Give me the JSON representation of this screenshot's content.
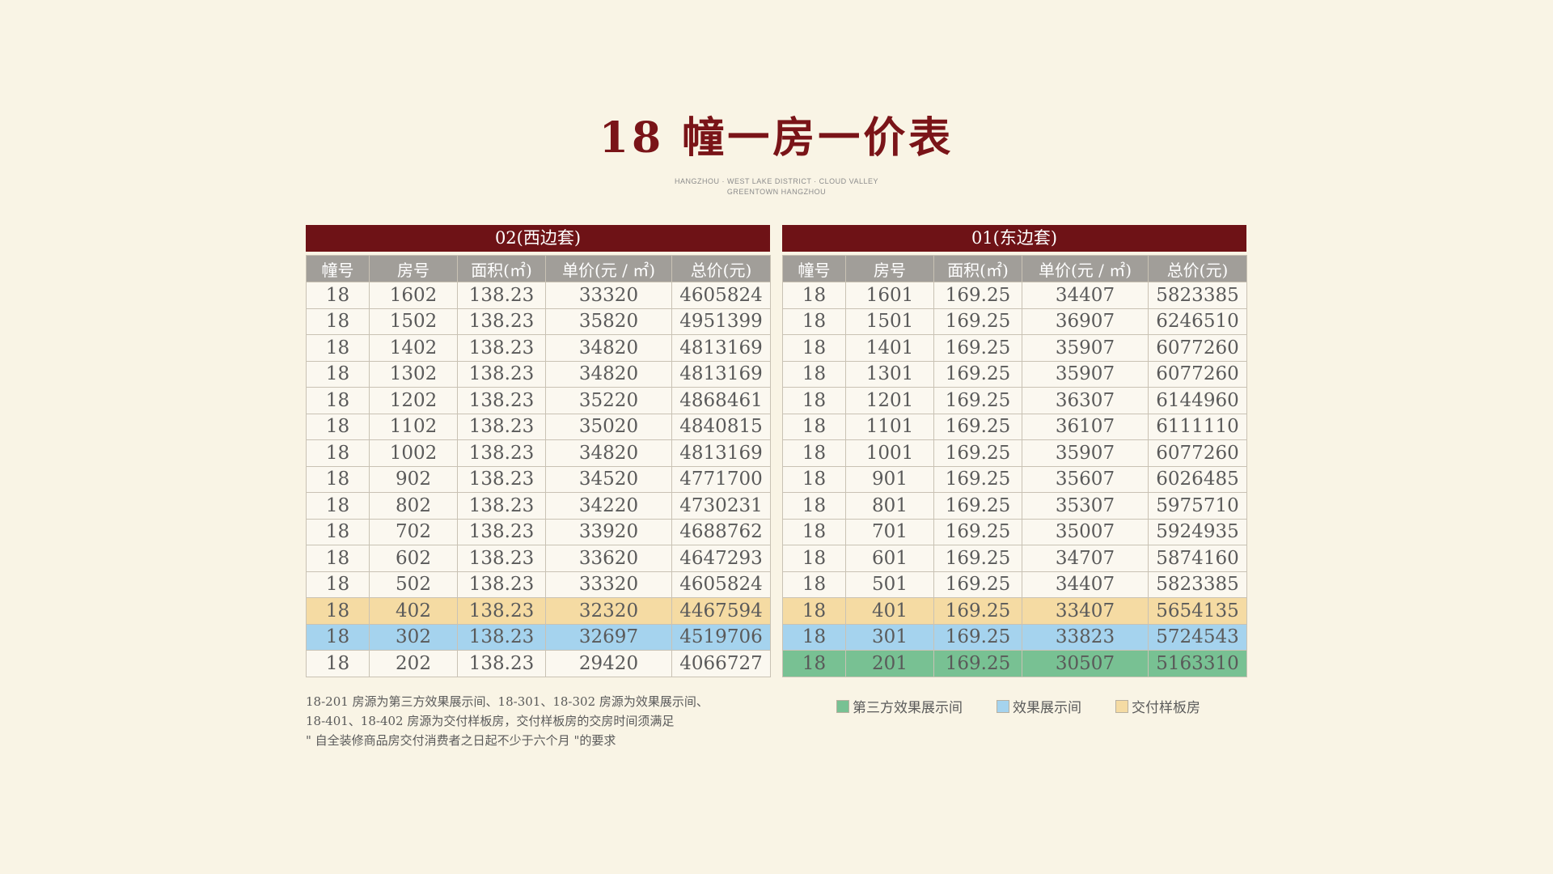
{
  "title": "18 幢一房一价表",
  "subtitle": {
    "line1": "HANGZHOU · WEST LAKE DISTRICT · CLOUD VALLEY",
    "line2": "GREENTOWN HANGZHOU"
  },
  "columns": [
    "幢号",
    "房号",
    "面积(㎡)",
    "单价(元 / ㎡)",
    "总价(元)"
  ],
  "colors": {
    "header_bar": "#6e1216",
    "title": "#7a1418",
    "third_party": "#78c193",
    "showroom": "#a5d3ee",
    "delivery_sample": "#f5dba3"
  },
  "west": {
    "label": "02(西边套)",
    "rows": [
      {
        "building": "18",
        "room": "1602",
        "area": "138.23",
        "unit_price": "33320",
        "total": "4605824"
      },
      {
        "building": "18",
        "room": "1502",
        "area": "138.23",
        "unit_price": "35820",
        "total": "4951399"
      },
      {
        "building": "18",
        "room": "1402",
        "area": "138.23",
        "unit_price": "34820",
        "total": "4813169"
      },
      {
        "building": "18",
        "room": "1302",
        "area": "138.23",
        "unit_price": "34820",
        "total": "4813169"
      },
      {
        "building": "18",
        "room": "1202",
        "area": "138.23",
        "unit_price": "35220",
        "total": "4868461"
      },
      {
        "building": "18",
        "room": "1102",
        "area": "138.23",
        "unit_price": "35020",
        "total": "4840815"
      },
      {
        "building": "18",
        "room": "1002",
        "area": "138.23",
        "unit_price": "34820",
        "total": "4813169"
      },
      {
        "building": "18",
        "room": "902",
        "area": "138.23",
        "unit_price": "34520",
        "total": "4771700"
      },
      {
        "building": "18",
        "room": "802",
        "area": "138.23",
        "unit_price": "34220",
        "total": "4730231"
      },
      {
        "building": "18",
        "room": "702",
        "area": "138.23",
        "unit_price": "33920",
        "total": "4688762"
      },
      {
        "building": "18",
        "room": "602",
        "area": "138.23",
        "unit_price": "33620",
        "total": "4647293"
      },
      {
        "building": "18",
        "room": "502",
        "area": "138.23",
        "unit_price": "33320",
        "total": "4605824"
      },
      {
        "building": "18",
        "room": "402",
        "area": "138.23",
        "unit_price": "32320",
        "total": "4467594",
        "highlight": "yellow"
      },
      {
        "building": "18",
        "room": "302",
        "area": "138.23",
        "unit_price": "32697",
        "total": "4519706",
        "highlight": "blue"
      },
      {
        "building": "18",
        "room": "202",
        "area": "138.23",
        "unit_price": "29420",
        "total": "4066727"
      }
    ]
  },
  "east": {
    "label": "01(东边套)",
    "rows": [
      {
        "building": "18",
        "room": "1601",
        "area": "169.25",
        "unit_price": "34407",
        "total": "5823385"
      },
      {
        "building": "18",
        "room": "1501",
        "area": "169.25",
        "unit_price": "36907",
        "total": "6246510"
      },
      {
        "building": "18",
        "room": "1401",
        "area": "169.25",
        "unit_price": "35907",
        "total": "6077260"
      },
      {
        "building": "18",
        "room": "1301",
        "area": "169.25",
        "unit_price": "35907",
        "total": "6077260"
      },
      {
        "building": "18",
        "room": "1201",
        "area": "169.25",
        "unit_price": "36307",
        "total": "6144960"
      },
      {
        "building": "18",
        "room": "1101",
        "area": "169.25",
        "unit_price": "36107",
        "total": "6111110"
      },
      {
        "building": "18",
        "room": "1001",
        "area": "169.25",
        "unit_price": "35907",
        "total": "6077260"
      },
      {
        "building": "18",
        "room": "901",
        "area": "169.25",
        "unit_price": "35607",
        "total": "6026485"
      },
      {
        "building": "18",
        "room": "801",
        "area": "169.25",
        "unit_price": "35307",
        "total": "5975710"
      },
      {
        "building": "18",
        "room": "701",
        "area": "169.25",
        "unit_price": "35007",
        "total": "5924935"
      },
      {
        "building": "18",
        "room": "601",
        "area": "169.25",
        "unit_price": "34707",
        "total": "5874160"
      },
      {
        "building": "18",
        "room": "501",
        "area": "169.25",
        "unit_price": "34407",
        "total": "5823385"
      },
      {
        "building": "18",
        "room": "401",
        "area": "169.25",
        "unit_price": "33407",
        "total": "5654135",
        "highlight": "yellow"
      },
      {
        "building": "18",
        "room": "301",
        "area": "169.25",
        "unit_price": "33823",
        "total": "5724543",
        "highlight": "blue"
      },
      {
        "building": "18",
        "room": "201",
        "area": "169.25",
        "unit_price": "30507",
        "total": "5163310",
        "highlight": "green"
      }
    ]
  },
  "note": {
    "line1": "18-201 房源为第三方效果展示间、18-301、18-302 房源为效果展示间、",
    "line2": "18-401、18-402 房源为交付样板房，交付样板房的交房时间须满足",
    "line3": "\" 自全装修商品房交付消费者之日起不少于六个月 \"的要求"
  },
  "legend": [
    {
      "label": "第三方效果展示间",
      "color": "#78c193"
    },
    {
      "label": "效果展示间",
      "color": "#a5d3ee"
    },
    {
      "label": "交付样板房",
      "color": "#f5dba3"
    }
  ]
}
